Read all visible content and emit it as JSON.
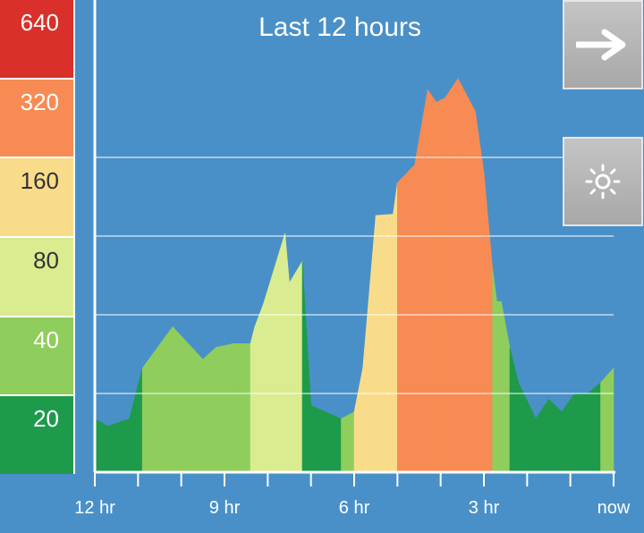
{
  "title": "Last 12 hours",
  "scale": {
    "bands": [
      {
        "label": "640",
        "color": "#d9302b",
        "text": "light"
      },
      {
        "label": "320",
        "color": "#f78b53",
        "text": "light"
      },
      {
        "label": "160",
        "color": "#f9dc8a",
        "text": "dark"
      },
      {
        "label": "80",
        "color": "#d9ec8f",
        "text": "dark"
      },
      {
        "label": "40",
        "color": "#8fcd5c",
        "text": "light"
      },
      {
        "label": "20",
        "color": "#1e9a4b",
        "text": "light"
      }
    ]
  },
  "buttons": {
    "next_icon": "arrow-right-icon",
    "brightness_icon": "brightness-icon"
  },
  "colors": {
    "background": "#4a90c8",
    "grid": "#ffffff",
    "axis": "#ffffff"
  },
  "chart_data": {
    "type": "area",
    "title": "Last 12 hours",
    "x_ticks": [
      "12 hr",
      "9 hr",
      "6 hr",
      "3 hr",
      "now"
    ],
    "tick_positions": [
      12,
      9,
      6,
      3,
      0
    ],
    "xlim": [
      12,
      0
    ],
    "y_scale": "log2",
    "ylim": [
      10,
      640
    ],
    "y_gridlines": [
      20,
      40,
      80,
      160
    ],
    "levels": [
      20,
      40,
      80,
      160,
      320,
      640
    ],
    "x": [
      12.0,
      11.7,
      11.2,
      10.9,
      10.2,
      9.5,
      9.2,
      8.8,
      8.4,
      8.3,
      8.1,
      7.6,
      7.5,
      7.2,
      7.0,
      6.3,
      6.0,
      5.8,
      5.5,
      5.1,
      5.0,
      4.6,
      4.3,
      4.1,
      3.9,
      3.6,
      3.2,
      3.0,
      2.8,
      2.7,
      2.6,
      2.4,
      2.2,
      1.8,
      1.5,
      1.2,
      0.9,
      0.6,
      0.3,
      0.0
    ],
    "values": [
      16,
      15,
      16,
      25,
      36,
      27,
      30,
      31,
      31,
      36,
      44,
      82,
      53,
      64,
      18,
      16,
      17,
      25,
      96,
      97,
      128,
      150,
      290,
      260,
      270,
      320,
      240,
      140,
      60,
      45,
      45,
      30,
      22,
      16,
      19,
      17,
      20,
      20,
      22,
      25
    ],
    "bar_levels": [
      20,
      20,
      20,
      40,
      40,
      40,
      40,
      40,
      80,
      80,
      80,
      80,
      80,
      20,
      20,
      40,
      160,
      160,
      160,
      160,
      320,
      320,
      320,
      320,
      320,
      320,
      320,
      320,
      40,
      40,
      40,
      20,
      20,
      20,
      20,
      20,
      20,
      20,
      40,
      40
    ]
  }
}
